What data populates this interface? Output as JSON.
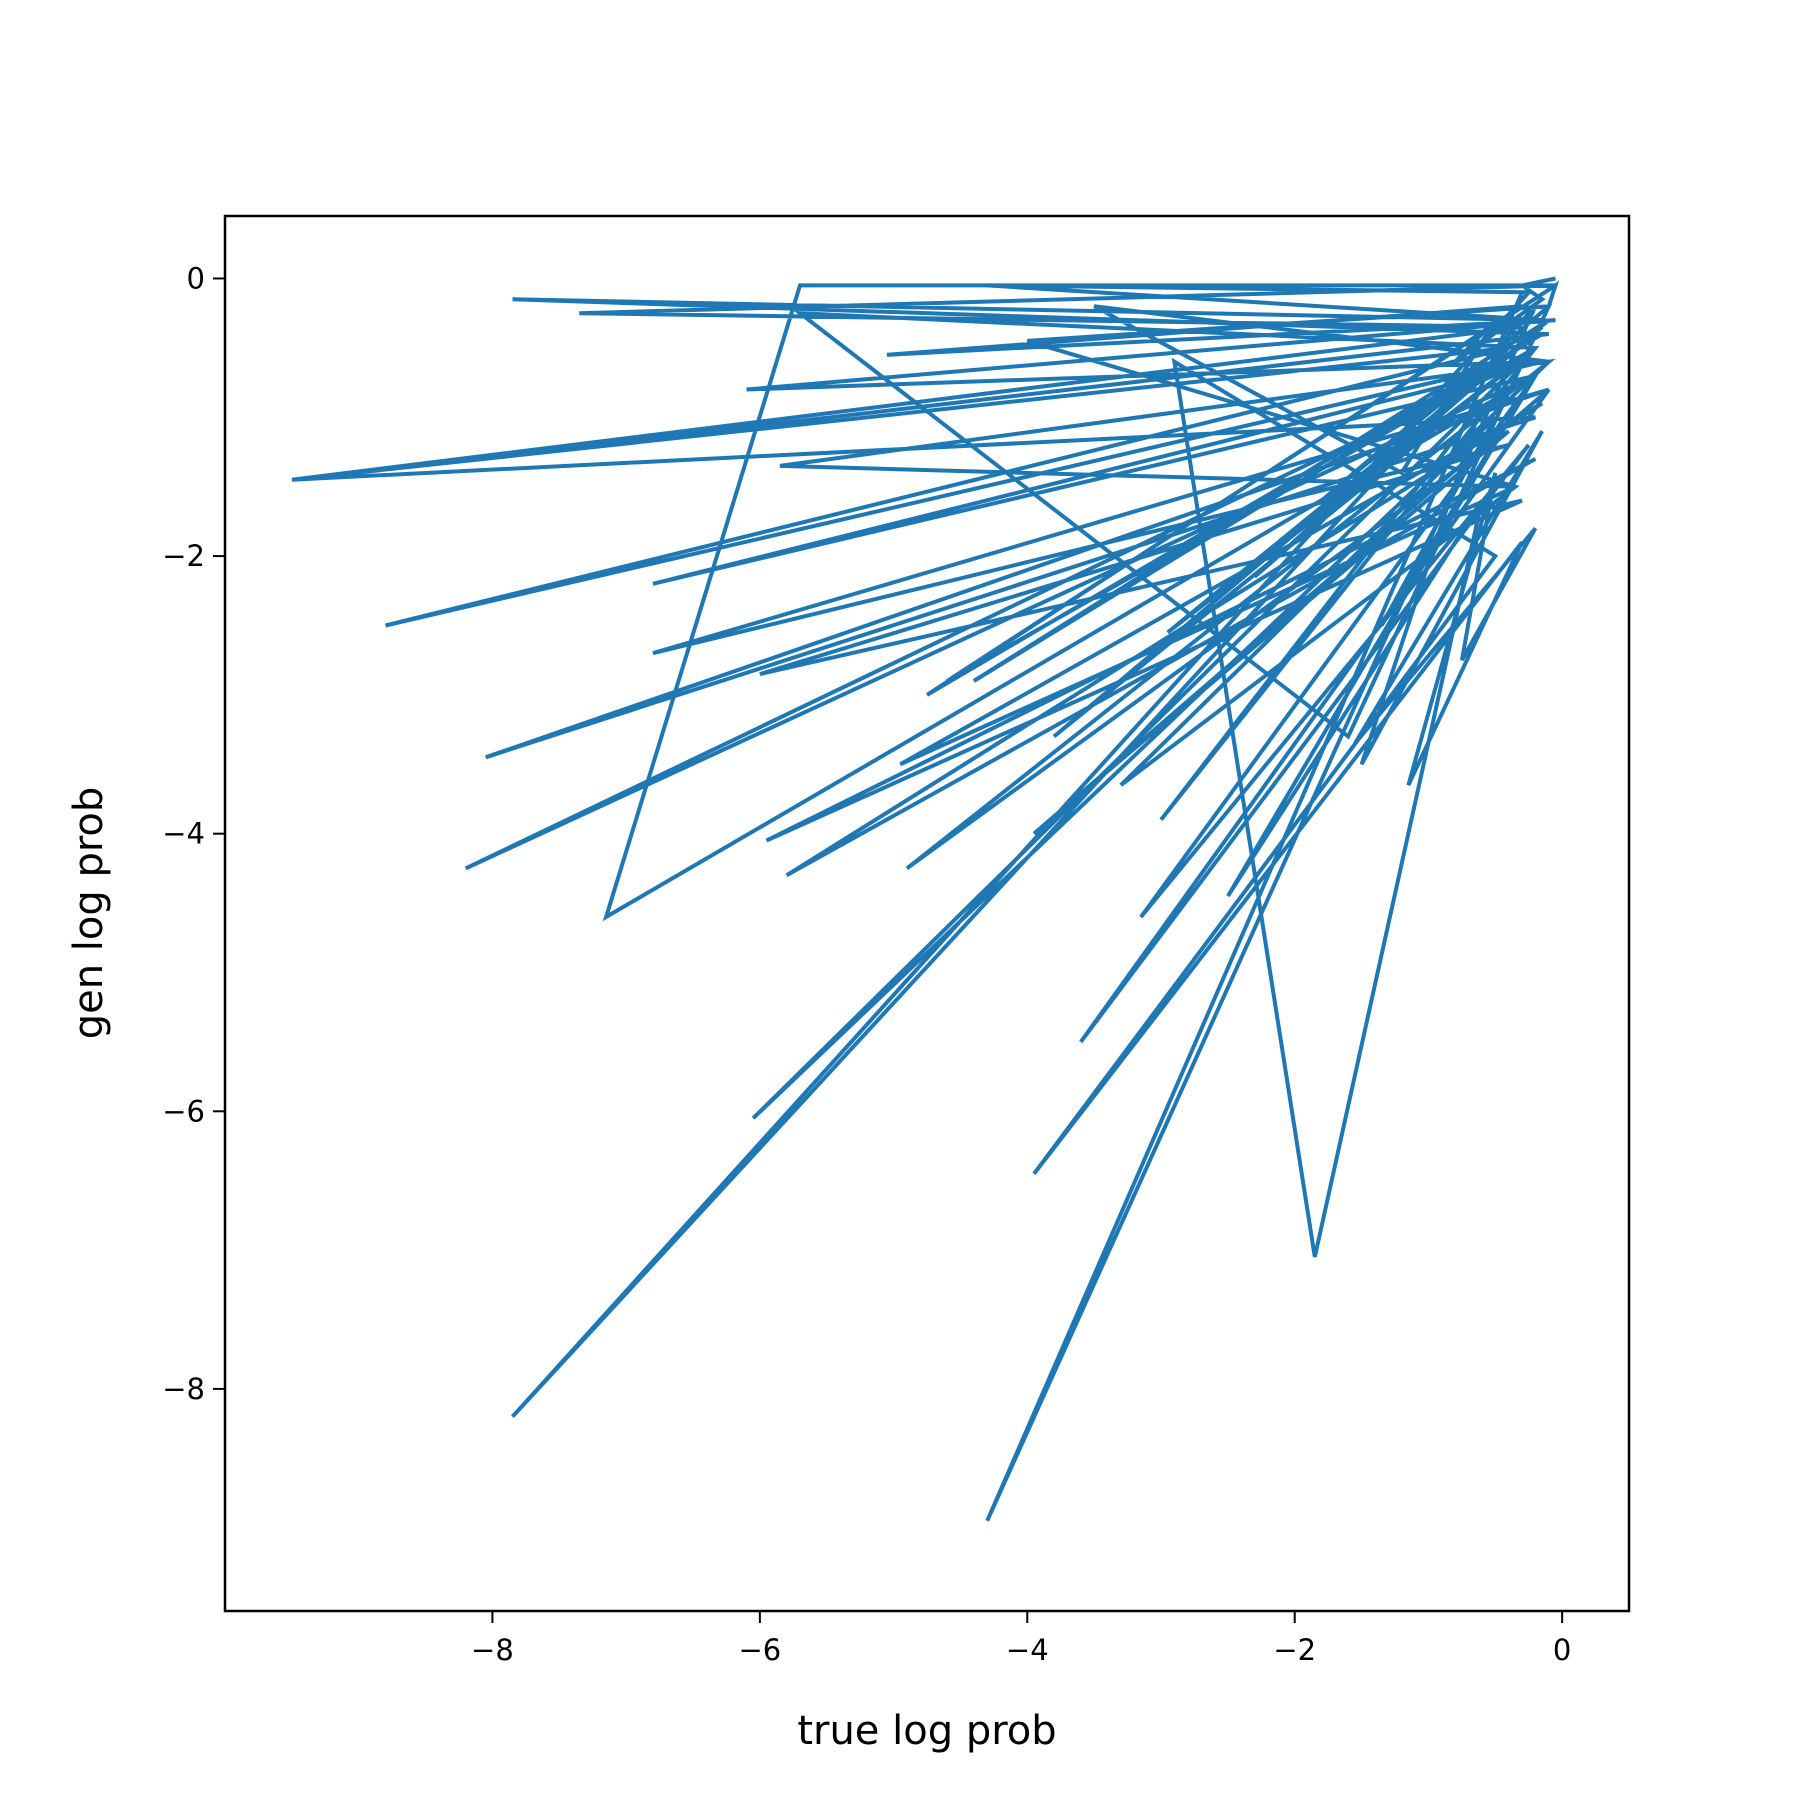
{
  "chart_data": {
    "type": "line",
    "title": "",
    "xlabel": "true log prob",
    "ylabel": "gen log prob",
    "xlim": [
      -10.0,
      0.5
    ],
    "ylim": [
      -9.6,
      0.45
    ],
    "xticks": [
      -8,
      -6,
      -4,
      -2,
      0
    ],
    "yticks": [
      0,
      -2,
      -4,
      -6,
      -8
    ],
    "xtick_labels": [
      "−8",
      "−6",
      "−4",
      "−2",
      "0"
    ],
    "ytick_labels": [
      "0",
      "−2",
      "−4",
      "−6",
      "−8"
    ],
    "grid": false,
    "legend": "none",
    "line_color": "#1f77b4",
    "series": [
      {
        "x": [
          -0.3,
          -4.3,
          -0.2,
          -7.85,
          -0.25,
          -4.3,
          -0.15,
          -7.85,
          -0.1,
          -9.5,
          -0.4,
          -8.8,
          -0.3,
          -8.2,
          -0.2,
          -7.15,
          -5.7,
          -0.05,
          -7.35,
          -0.3,
          -9.5,
          -0.2,
          -8.05,
          -0.1,
          -6.8,
          -0.4,
          -6.0,
          -0.3,
          -5.95,
          -0.2,
          -5.8,
          -0.15,
          -4.95,
          -0.35,
          -5.85,
          -0.1,
          -4.9,
          -0.4,
          -3.95,
          -0.1,
          -3.6,
          -0.25,
          -3.15,
          -0.2,
          -2.5,
          -0.6,
          -1.85,
          -2.9,
          -0.5,
          -3.95,
          -0.3,
          -1.15,
          -0.5,
          -0.75,
          -0.2,
          -1.55,
          -0.15,
          -1.5,
          -0.6,
          -3.0,
          -0.2,
          -5.7,
          -1.6,
          -0.1,
          -4.0,
          -0.35,
          -3.3,
          -0.5,
          -1.35,
          -0.2,
          -6.8,
          -0.15,
          -6.1,
          -0.05,
          -5.05,
          -0.3,
          -4.75,
          -0.15,
          -4.4,
          -0.1,
          -3.8,
          -0.2,
          -2.95,
          -0.15,
          -2.3,
          -0.4,
          -1.8,
          -0.1,
          -0.05,
          -4.6,
          -0.2,
          -6.05,
          -0.1,
          -3.5,
          -1.2,
          -0.5,
          -0.8,
          -0.15,
          -0.3,
          -0.05
        ],
        "y": [
          -0.1,
          -8.95,
          -0.2,
          -8.2,
          -0.1,
          -0.05,
          -0.3,
          -0.15,
          -0.4,
          -1.45,
          -0.5,
          -2.5,
          -0.6,
          -4.25,
          -0.7,
          -4.6,
          -0.05,
          -0.05,
          -0.25,
          -0.35,
          -1.45,
          -1.0,
          -3.45,
          -0.8,
          -2.7,
          -1.2,
          -2.85,
          -1.6,
          -4.05,
          -1.3,
          -4.3,
          -0.9,
          -3.5,
          -1.5,
          -1.35,
          -0.6,
          -4.25,
          -1.1,
          -4.0,
          -0.8,
          -5.5,
          -1.2,
          -4.6,
          -0.7,
          -4.45,
          -1.6,
          -7.05,
          -0.6,
          -2.0,
          -6.45,
          -1.9,
          -3.65,
          -1.4,
          -2.75,
          -1.8,
          -3.35,
          -1.1,
          -3.5,
          -0.9,
          -3.9,
          -0.5,
          -0.25,
          -3.3,
          -0.2,
          -0.45,
          -1.5,
          -3.65,
          -1.0,
          -2.5,
          -0.7,
          -2.2,
          -0.6,
          -0.8,
          -0.3,
          -0.55,
          -0.2,
          -3.0,
          -0.4,
          -2.9,
          -0.3,
          -3.3,
          -0.5,
          -2.55,
          -0.35,
          -2.15,
          -0.5,
          -1.6,
          -0.2,
          -0.05,
          -2.9,
          -0.5,
          -6.05,
          -0.6,
          -0.2,
          -1.4,
          -0.3,
          -0.6,
          -0.15,
          -0.05,
          0.0
        ]
      }
    ]
  }
}
